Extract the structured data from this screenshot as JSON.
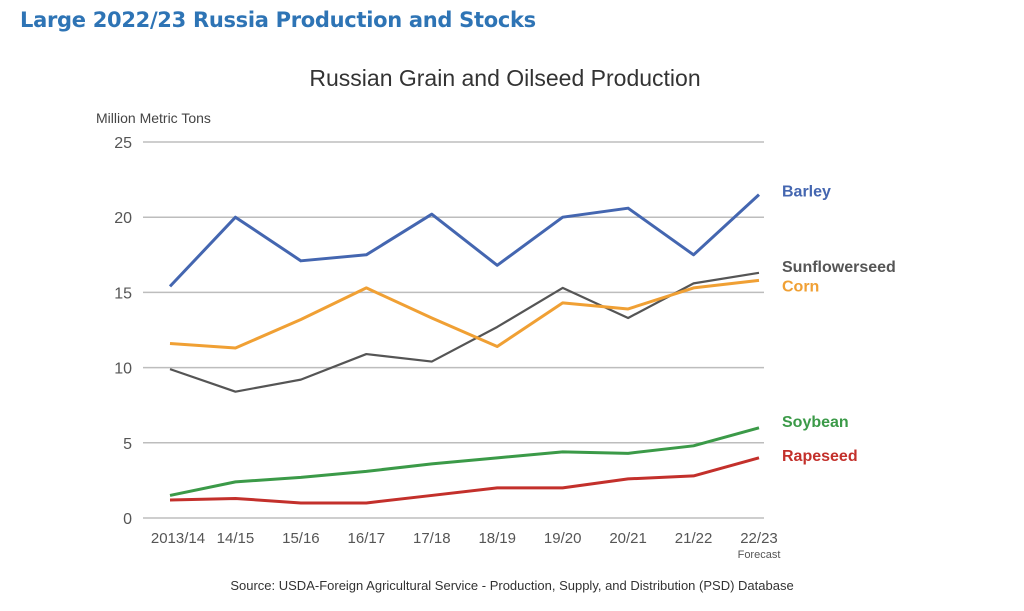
{
  "page": {
    "heading": "Large 2022/23 Russia Production and Stocks"
  },
  "chart_data": {
    "type": "line",
    "title": "Russian Grain and Oilseed Production",
    "ylabel": "Million Metric Tons",
    "xlabel": "",
    "ylim": [
      0,
      25
    ],
    "yticks": [
      0,
      5,
      10,
      15,
      20,
      25
    ],
    "grid": true,
    "legend": "right-end labels",
    "categories": [
      "2013/14",
      "14/15",
      "15/16",
      "16/17",
      "17/18",
      "18/19",
      "19/20",
      "20/21",
      "21/22",
      "22/23"
    ],
    "category_note": "Forecast",
    "source": "Source: USDA-Foreign Agricultural Service - Production, Supply, and Distribution (PSD) Database",
    "series": [
      {
        "name": "Barley",
        "color": "#4466b0",
        "values": [
          15.4,
          20.0,
          17.1,
          17.5,
          20.2,
          16.8,
          20.0,
          20.6,
          17.5,
          21.5
        ]
      },
      {
        "name": "Sunflowerseed",
        "color": "#555555",
        "values": [
          9.9,
          8.4,
          9.2,
          10.9,
          10.4,
          12.7,
          15.3,
          13.3,
          15.6,
          16.3
        ]
      },
      {
        "name": "Corn",
        "color": "#f0a034",
        "values": [
          11.6,
          11.3,
          13.2,
          15.3,
          13.3,
          11.4,
          14.3,
          13.9,
          15.3,
          15.8
        ]
      },
      {
        "name": "Soybean",
        "color": "#3b9a48",
        "values": [
          1.5,
          2.4,
          2.7,
          3.1,
          3.6,
          4.0,
          4.4,
          4.3,
          4.8,
          6.0
        ]
      },
      {
        "name": "Rapeseed",
        "color": "#c3302b",
        "values": [
          1.2,
          1.3,
          1.0,
          1.0,
          1.5,
          2.0,
          2.0,
          2.6,
          2.8,
          4.0
        ]
      }
    ]
  }
}
